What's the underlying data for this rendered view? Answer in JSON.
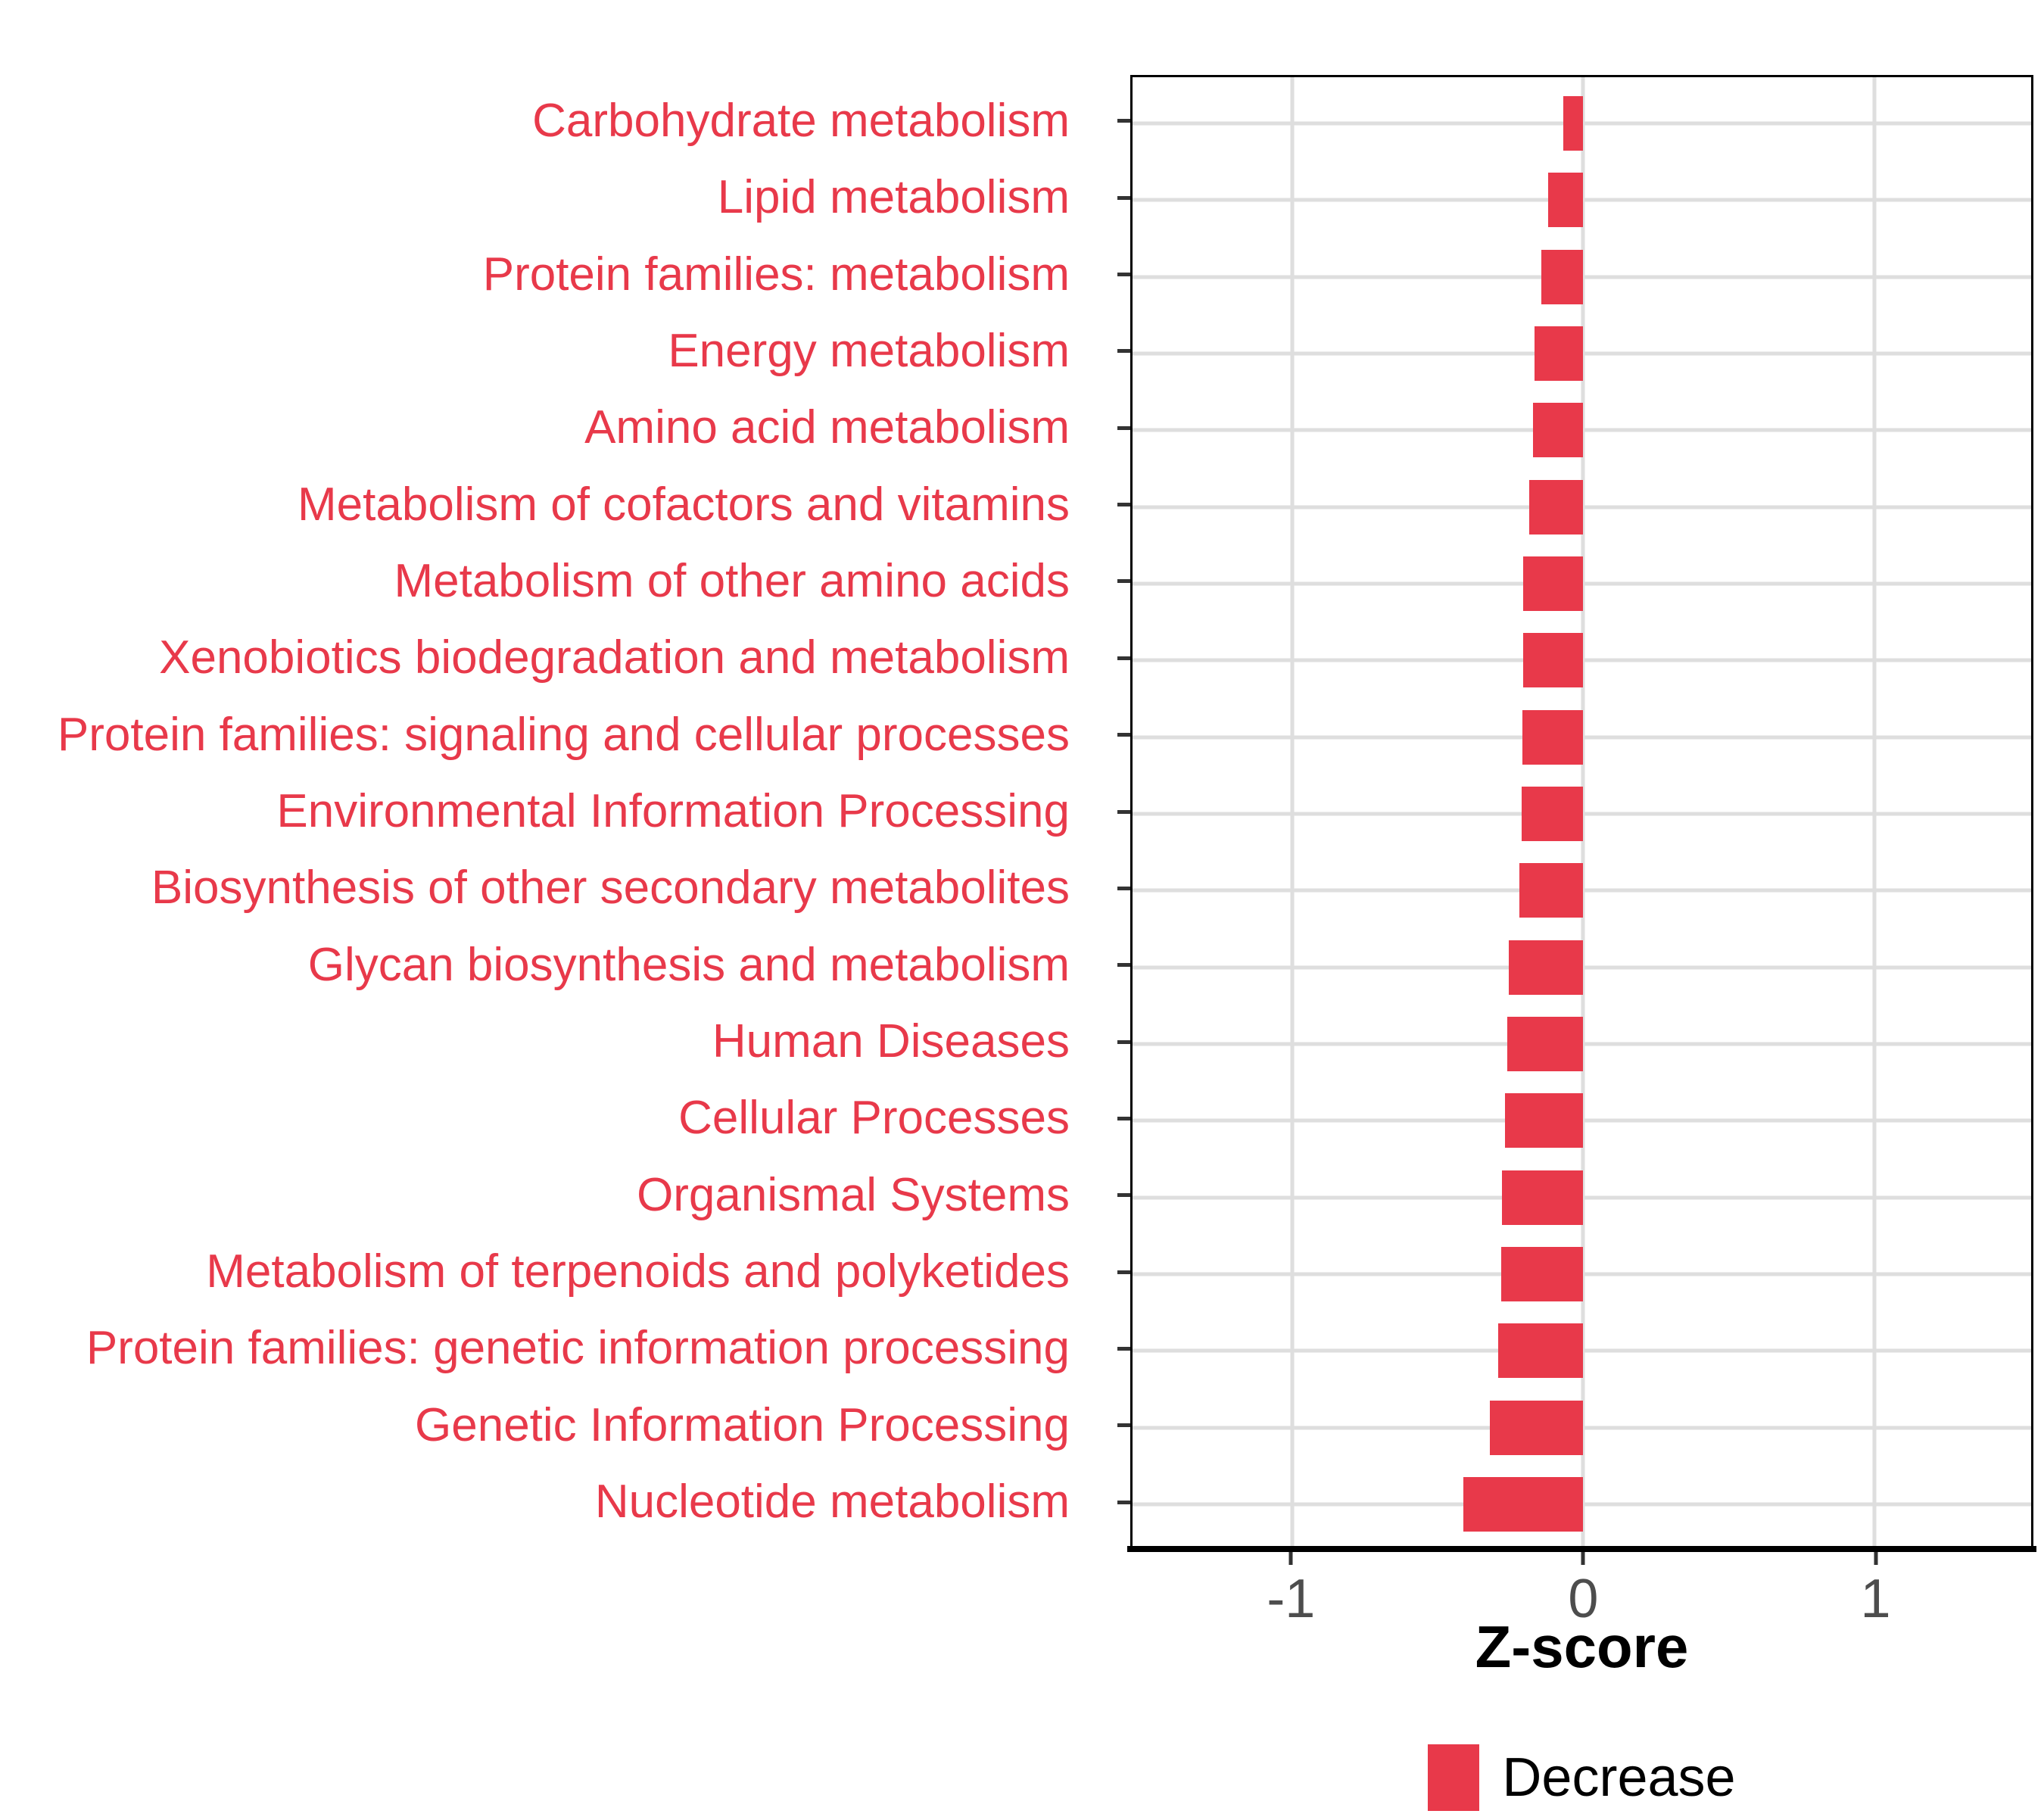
{
  "chart_data": {
    "type": "bar",
    "orientation": "horizontal",
    "title": "",
    "xlabel": "Z-score",
    "ylabel": "",
    "categories": [
      "Carbohydrate metabolism",
      "Lipid metabolism",
      "Protein families: metabolism",
      "Energy metabolism",
      "Amino acid metabolism",
      "Metabolism of cofactors and vitamins",
      "Metabolism of other amino acids",
      "Xenobiotics biodegradation and metabolism",
      "Protein families: signaling and cellular processes",
      "Environmental Information Processing",
      "Biosynthesis of other secondary metabolites",
      "Glycan biosynthesis and metabolism",
      "Human Diseases",
      "Cellular Processes",
      "Organismal Systems",
      "Metabolism of terpenoids and polyketides",
      "Protein families: genetic information processing",
      "Genetic Information Processing",
      "Nucleotide metabolism"
    ],
    "series": [
      {
        "name": "Decrease",
        "values": [
          -0.07,
          -0.122,
          -0.143,
          -0.169,
          -0.174,
          -0.187,
          -0.207,
          -0.208,
          -0.21,
          -0.213,
          -0.22,
          -0.257,
          -0.262,
          -0.27,
          -0.28,
          -0.283,
          -0.293,
          -0.322,
          -0.412
        ]
      }
    ],
    "x_ticks": [
      -1,
      0,
      1
    ],
    "x_tick_labels": [
      "-1",
      "0",
      "1"
    ],
    "xlim": [
      -1.55,
      1.54
    ],
    "grid": "major-only",
    "legend_position": "bottom-center",
    "colors": {
      "bar_fill": "#E8394A",
      "category_label": "#E8394A",
      "gridline": "#DEDEDE",
      "tick_label": "#4D4D4D",
      "axis_title": "#000000",
      "panel_border": "#000000"
    }
  },
  "legend": {
    "items": [
      {
        "label": "Decrease",
        "color": "#E8394A"
      }
    ]
  }
}
